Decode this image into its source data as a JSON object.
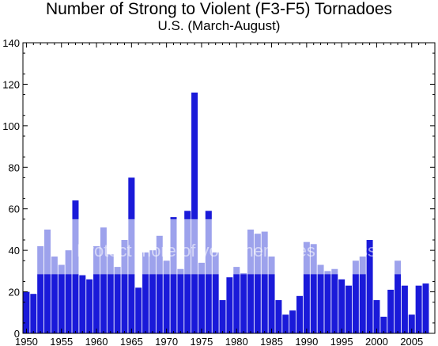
{
  "chart_data": {
    "type": "bar",
    "title": "Number of Strong to Violent (F3-F5) Tornadoes",
    "subtitle": "U.S.  (March-August)",
    "xlabel": "",
    "ylabel": "",
    "x": [
      1950,
      1951,
      1952,
      1953,
      1954,
      1955,
      1956,
      1957,
      1958,
      1959,
      1960,
      1961,
      1962,
      1963,
      1964,
      1965,
      1966,
      1967,
      1968,
      1969,
      1970,
      1971,
      1972,
      1973,
      1974,
      1975,
      1976,
      1977,
      1978,
      1979,
      1980,
      1981,
      1982,
      1983,
      1984,
      1985,
      1986,
      1987,
      1988,
      1989,
      1990,
      1991,
      1992,
      1993,
      1994,
      1995,
      1996,
      1997,
      1998,
      1999,
      2000,
      2001,
      2002,
      2003,
      2004,
      2005,
      2006,
      2007
    ],
    "values": [
      20,
      19,
      42,
      50,
      37,
      33,
      40,
      64,
      28,
      26,
      42,
      51,
      38,
      32,
      45,
      75,
      22,
      39,
      40,
      47,
      35,
      56,
      31,
      59,
      116,
      34,
      59,
      39,
      16,
      27,
      32,
      29,
      50,
      48,
      49,
      37,
      16,
      9,
      11,
      18,
      44,
      43,
      33,
      30,
      31,
      26,
      23,
      35,
      37,
      45,
      16,
      8,
      21,
      35,
      23,
      9,
      23,
      24
    ],
    "bar_colors": {
      "dark": "#1a1ad9",
      "light": "#9da2ec"
    },
    "x_ticks": [
      "1950",
      "1955",
      "1960",
      "1965",
      "1970",
      "1975",
      "1980",
      "1985",
      "1990",
      "1995",
      "2000",
      "2005"
    ],
    "y_ticks": [
      "0",
      "20",
      "40",
      "60",
      "80",
      "100",
      "120",
      "140"
    ],
    "xlim": [
      1949.5,
      2008.3
    ],
    "ylim": [
      0,
      140
    ],
    "grid": false,
    "legend": "none",
    "watermark_text": "Protect more of your memories for less!"
  }
}
